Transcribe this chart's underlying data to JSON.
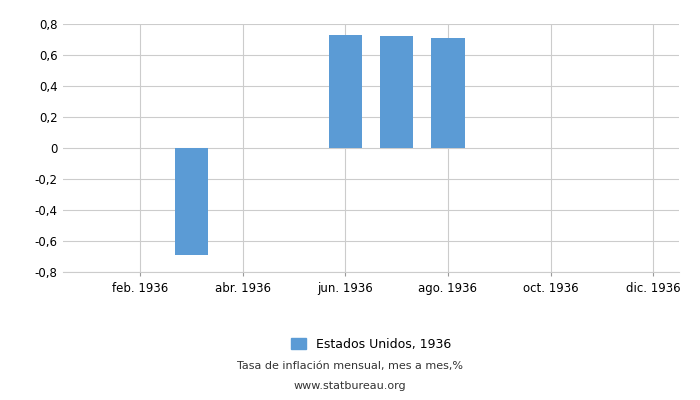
{
  "title": "",
  "months": [
    1,
    2,
    3,
    4,
    5,
    6,
    7,
    8,
    9,
    10,
    11,
    12
  ],
  "values": [
    null,
    null,
    -0.69,
    null,
    null,
    0.73,
    0.72,
    0.71,
    null,
    null,
    null,
    null
  ],
  "bar_color": "#5B9BD5",
  "ylim": [
    -0.8,
    0.8
  ],
  "yticks": [
    -0.8,
    -0.6,
    -0.4,
    -0.2,
    0,
    0.2,
    0.4,
    0.6,
    0.8
  ],
  "xtick_positions": [
    2,
    4,
    6,
    8,
    10,
    12
  ],
  "xlabel_dates": [
    "feb. 1936",
    "abr. 1936",
    "jun. 1936",
    "ago. 1936",
    "oct. 1936",
    "dic. 1936"
  ],
  "legend_label": "Estados Unidos, 1936",
  "footer_line1": "Tasa de inflación mensual, mes a mes,%",
  "footer_line2": "www.statbureau.org",
  "background_color": "#ffffff",
  "grid_color": "#cccccc",
  "bar_width": 0.65
}
